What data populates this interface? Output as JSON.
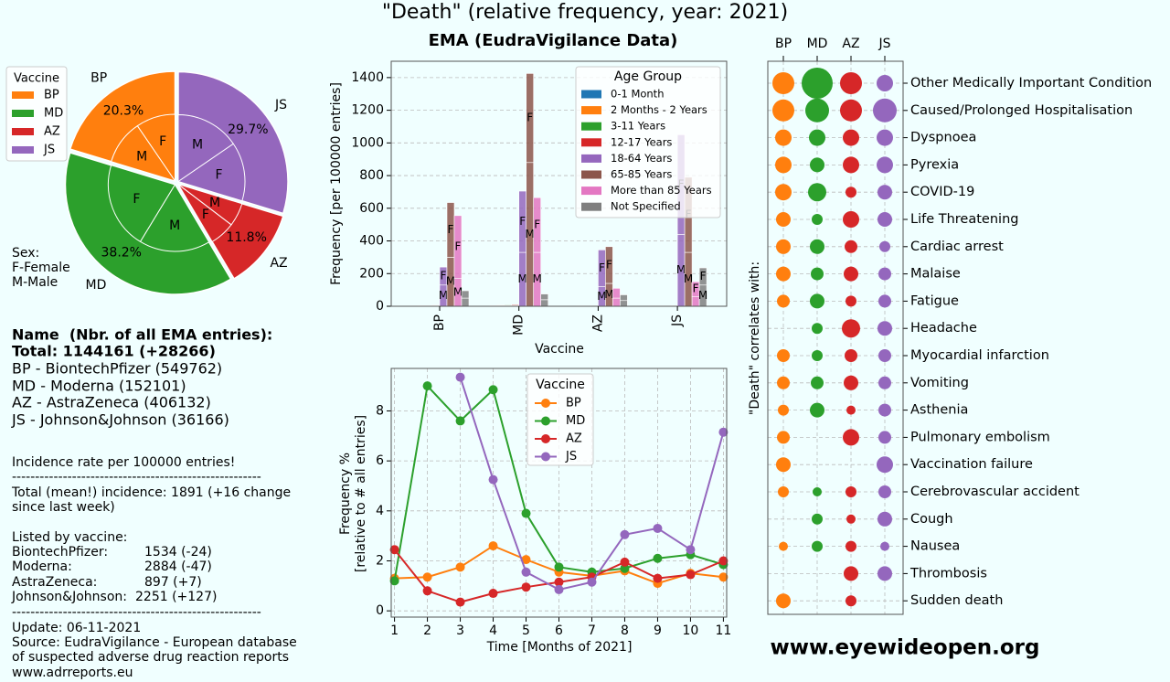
{
  "title": "\"Death\" (relative frequency, year: 2021)",
  "website": "www.eyewideopen.org",
  "info": {
    "heading": "Name  (Nbr. of all EMA entries):",
    "total": "Total: 1144161 (+28266)",
    "vaccines": [
      "BP - BiontechPfizer (549762)",
      "MD - Moderna (152101)",
      "AZ - AstraZeneca (406132)",
      "JS - Johnson&Johnson (36166)"
    ],
    "incidence_note": "Incidence rate per 100000 entries!",
    "separator": "------------------------------------------------------",
    "total_incidence": [
      "Total (mean!) incidence: 1891 (+16 change",
      "since last week)"
    ],
    "listed_heading": "Listed by vaccine:",
    "listed": [
      [
        "BiontechPfizer:",
        "1534 (-24)"
      ],
      [
        "Moderna:",
        "2884 (-47)"
      ],
      [
        "AstraZeneca:",
        "897 (+7)"
      ],
      [
        "Johnson&Johnson:",
        "2251 (+127)"
      ]
    ],
    "update": "Update: 06-11-2021",
    "source": [
      "Source: EudraVigilance - European database",
      "of suspected adverse drug reaction reports",
      "www.adrreports.eu"
    ]
  },
  "chart_data": [
    {
      "type": "pie",
      "categories": [
        "BP",
        "MD",
        "AZ",
        "JS"
      ],
      "values": [
        20.3,
        38.2,
        11.8,
        29.7
      ],
      "value_labels": [
        "20.3%",
        "38.2%",
        "11.8%",
        "29.7%"
      ],
      "colors": [
        "#ff7f0e",
        "#2ca02c",
        "#d62728",
        "#9467bd"
      ],
      "legend_title": "Vaccine",
      "inner": {
        "labels": [
          "F",
          "M"
        ],
        "values": [
          [
            47,
            53
          ],
          [
            55,
            45
          ],
          [
            52,
            48
          ],
          [
            48,
            52
          ]
        ]
      },
      "sex_note": [
        "Sex:",
        "F-Female",
        "M-Male"
      ]
    },
    {
      "type": "bar",
      "title": "EMA (EudraVigilance Data)",
      "xlabel": "Vaccine",
      "ylabel": "Frequency [per 100000 entries]",
      "categories": [
        "BP",
        "MD",
        "AZ",
        "JS"
      ],
      "ylim": [
        0,
        1500
      ],
      "yticks": [
        0,
        200,
        400,
        600,
        800,
        1000,
        1200,
        1400
      ],
      "grid": true,
      "legend_title": "Age Group",
      "stack_labels": [
        "M",
        "F"
      ],
      "series": [
        {
          "name": "0-1 Month",
          "color": "#1f77b4",
          "male": [
            1,
            2,
            0,
            1
          ],
          "female": [
            1,
            2,
            0,
            1
          ]
        },
        {
          "name": "2 Months - 2 Years",
          "color": "#ff7f0e",
          "male": [
            2,
            3,
            1,
            1
          ],
          "female": [
            2,
            3,
            1,
            1
          ]
        },
        {
          "name": "3-11 Years",
          "color": "#2ca02c",
          "male": [
            2,
            4,
            1,
            1
          ],
          "female": [
            2,
            4,
            1,
            1
          ]
        },
        {
          "name": "12-17 Years",
          "color": "#d62728",
          "male": [
            3,
            4,
            1,
            2
          ],
          "female": [
            3,
            5,
            1,
            2
          ]
        },
        {
          "name": "18-64 Years",
          "color": "#9467bd",
          "male": [
            130,
            330,
            120,
            440
          ],
          "female": [
            110,
            375,
            225,
            610
          ]
        },
        {
          "name": "65-85 Years",
          "color": "#8c564b",
          "male": [
            300,
            880,
            140,
            330
          ],
          "female": [
            335,
            545,
            225,
            460
          ]
        },
        {
          "name": "More than 85 Years",
          "color": "#e377c2",
          "male": [
            170,
            330,
            50,
            60
          ],
          "female": [
            385,
            335,
            60,
            90
          ]
        },
        {
          "name": "Not Specified",
          "color": "#7f7f7f",
          "male": [
            50,
            40,
            35,
            130
          ],
          "female": [
            45,
            35,
            35,
            105
          ]
        }
      ]
    },
    {
      "type": "line",
      "xlabel": "Time [Months of 2021]",
      "ylabel": [
        "Frequency %",
        "[relative to # all entries]"
      ],
      "x": [
        1,
        2,
        3,
        4,
        5,
        6,
        7,
        8,
        9,
        10,
        11
      ],
      "xlim": [
        0.9,
        11.1
      ],
      "xticks": [
        1,
        2,
        3,
        4,
        5,
        6,
        7,
        8,
        9,
        10,
        11
      ],
      "ylim": [
        -0.25,
        9.7
      ],
      "yticks": [
        0,
        2,
        4,
        6,
        8
      ],
      "grid": true,
      "legend_title": "Vaccine",
      "series": [
        {
          "name": "BP",
          "color": "#ff7f0e",
          "values": [
            1.3,
            1.35,
            1.75,
            2.6,
            2.05,
            1.55,
            1.4,
            1.6,
            1.1,
            1.5,
            1.35
          ]
        },
        {
          "name": "MD",
          "color": "#2ca02c",
          "values": [
            1.2,
            9.0,
            7.6,
            8.85,
            3.9,
            1.75,
            1.55,
            1.7,
            2.1,
            2.25,
            1.85
          ]
        },
        {
          "name": "AZ",
          "color": "#d62728",
          "values": [
            2.45,
            0.8,
            0.35,
            0.7,
            0.95,
            1.15,
            1.35,
            1.95,
            1.3,
            1.45,
            2.0
          ]
        },
        {
          "name": "JS",
          "color": "#9467bd",
          "values": [
            null,
            null,
            9.35,
            5.25,
            1.55,
            0.85,
            1.15,
            3.05,
            3.3,
            2.45,
            7.15
          ]
        }
      ]
    },
    {
      "type": "bubble_matrix",
      "ylabel": "\"Death\" correlates with:",
      "grid": true,
      "categories": [
        "Other Medically Important Condition",
        "Caused/Prolonged Hospitalisation",
        "Dyspnoea",
        "Pyrexia",
        "COVID-19",
        "Life Threatening",
        "Cardiac arrest",
        "Malaise",
        "Fatigue",
        "Headache",
        "Myocardial infarction",
        "Vomiting",
        "Asthenia",
        "Pulmonary embolism",
        "Vaccination failure",
        "Cerebrovascular accident",
        "Cough",
        "Nausea",
        "Thrombosis",
        "Sudden death"
      ],
      "series": [
        {
          "name": "BP",
          "color": "#ff7f0e",
          "values": [
            24,
            24,
            18,
            18,
            18,
            16,
            16,
            16,
            14,
            null,
            14,
            14,
            12,
            14,
            16,
            12,
            null,
            10,
            null,
            16
          ]
        },
        {
          "name": "MD",
          "color": "#2ca02c",
          "values": [
            34,
            26,
            18,
            16,
            20,
            12,
            16,
            14,
            16,
            12,
            12,
            14,
            16,
            null,
            null,
            10,
            12,
            12,
            null,
            null
          ]
        },
        {
          "name": "AZ",
          "color": "#d62728",
          "values": [
            24,
            24,
            18,
            18,
            12,
            18,
            14,
            16,
            12,
            20,
            14,
            16,
            10,
            18,
            null,
            12,
            10,
            12,
            16,
            12
          ]
        },
        {
          "name": "JS",
          "color": "#9467bd",
          "values": [
            18,
            26,
            18,
            18,
            16,
            16,
            12,
            14,
            14,
            16,
            14,
            14,
            14,
            14,
            18,
            14,
            16,
            10,
            16,
            null
          ]
        }
      ]
    }
  ]
}
